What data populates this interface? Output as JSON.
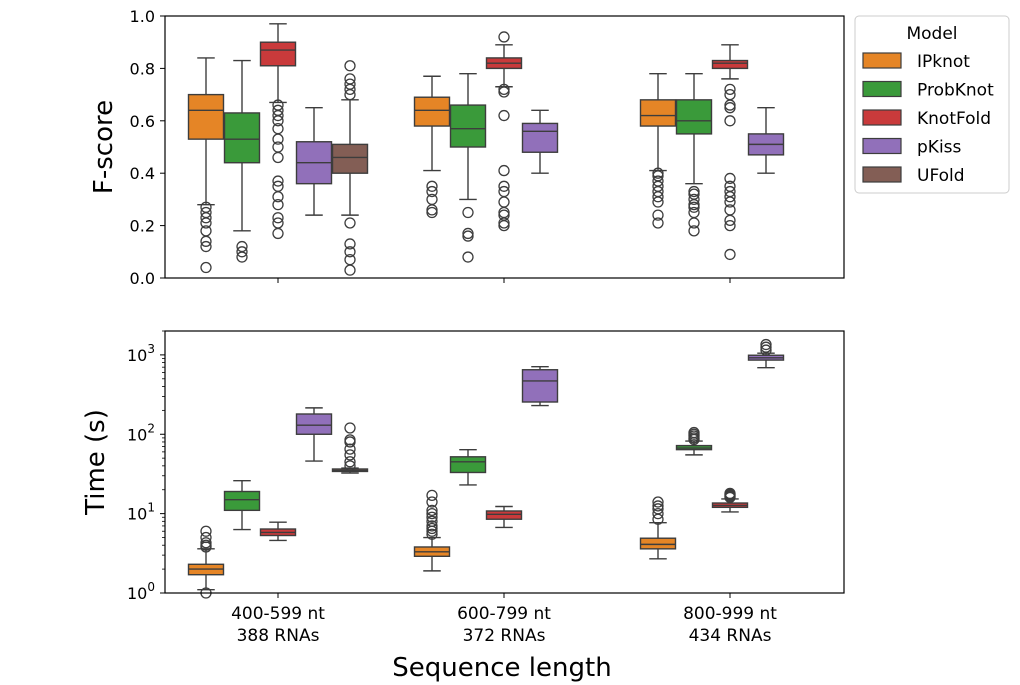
{
  "chart_data": {
    "type": "box",
    "xlabel": "Sequence length",
    "categories": [
      {
        "line1": "400-599 nt",
        "line2": "388 RNAs"
      },
      {
        "line1": "600-799 nt",
        "line2": "372 RNAs"
      },
      {
        "line1": "800-999 nt",
        "line2": "434 RNAs"
      }
    ],
    "legend": {
      "title": "Model",
      "placement": "outside-right",
      "entries": [
        {
          "name": "IPknot",
          "color": "#e58526"
        },
        {
          "name": "ProbKnot",
          "color": "#3a9a3a"
        },
        {
          "name": "KnotFold",
          "color": "#c93a3b"
        },
        {
          "name": "pKiss",
          "color": "#9170ba"
        },
        {
          "name": "UFold",
          "color": "#835e55"
        }
      ]
    },
    "panels": [
      {
        "id": "fscore",
        "ylabel": "F-score",
        "scale": "linear",
        "ylim": [
          0.0,
          1.0
        ],
        "yticks": [
          "0.0",
          "0.2",
          "0.4",
          "0.6",
          "0.8",
          "1.0"
        ],
        "groups": [
          [
            {
              "model": "IPknot",
              "q1": 0.53,
              "median": 0.64,
              "q3": 0.7,
              "whislo": 0.28,
              "whishi": 0.84,
              "fliers": [
                0.04,
                0.12,
                0.14,
                0.18,
                0.21,
                0.23,
                0.25,
                0.27
              ]
            },
            {
              "model": "ProbKnot",
              "q1": 0.44,
              "median": 0.53,
              "q3": 0.63,
              "whislo": 0.18,
              "whishi": 0.83,
              "fliers": [
                0.08,
                0.1,
                0.12
              ]
            },
            {
              "model": "KnotFold",
              "q1": 0.81,
              "median": 0.87,
              "q3": 0.9,
              "whislo": 0.67,
              "whishi": 0.97,
              "fliers": [
                0.17,
                0.21,
                0.23,
                0.28,
                0.31,
                0.35,
                0.37,
                0.46,
                0.5,
                0.53,
                0.57,
                0.6,
                0.62,
                0.64,
                0.66
              ]
            },
            {
              "model": "pKiss",
              "q1": 0.36,
              "median": 0.44,
              "q3": 0.52,
              "whislo": 0.24,
              "whishi": 0.65,
              "fliers": []
            },
            {
              "model": "UFold",
              "q1": 0.4,
              "median": 0.46,
              "q3": 0.51,
              "whislo": 0.24,
              "whishi": 0.68,
              "fliers": [
                0.03,
                0.07,
                0.1,
                0.13,
                0.21,
                0.7,
                0.72,
                0.74,
                0.76,
                0.81
              ]
            }
          ],
          [
            {
              "model": "IPknot",
              "q1": 0.58,
              "median": 0.64,
              "q3": 0.69,
              "whislo": 0.41,
              "whishi": 0.77,
              "fliers": [
                0.25,
                0.26,
                0.3,
                0.33,
                0.35
              ]
            },
            {
              "model": "ProbKnot",
              "q1": 0.5,
              "median": 0.57,
              "q3": 0.66,
              "whislo": 0.3,
              "whishi": 0.78,
              "fliers": [
                0.08,
                0.16,
                0.17,
                0.25
              ]
            },
            {
              "model": "KnotFold",
              "q1": 0.8,
              "median": 0.82,
              "q3": 0.84,
              "whislo": 0.73,
              "whishi": 0.89,
              "fliers": [
                0.2,
                0.21,
                0.24,
                0.25,
                0.29,
                0.33,
                0.35,
                0.41,
                0.62,
                0.71,
                0.72,
                0.92
              ]
            },
            {
              "model": "pKiss",
              "q1": 0.48,
              "median": 0.56,
              "q3": 0.59,
              "whislo": 0.4,
              "whishi": 0.64,
              "fliers": []
            }
          ],
          [
            {
              "model": "IPknot",
              "q1": 0.58,
              "median": 0.62,
              "q3": 0.68,
              "whislo": 0.41,
              "whishi": 0.78,
              "fliers": [
                0.21,
                0.24,
                0.29,
                0.31,
                0.33,
                0.35,
                0.37,
                0.39,
                0.4
              ]
            },
            {
              "model": "ProbKnot",
              "q1": 0.55,
              "median": 0.6,
              "q3": 0.68,
              "whislo": 0.36,
              "whishi": 0.78,
              "fliers": [
                0.18,
                0.21,
                0.25,
                0.27,
                0.28,
                0.3,
                0.32,
                0.33
              ]
            },
            {
              "model": "KnotFold",
              "q1": 0.8,
              "median": 0.82,
              "q3": 0.83,
              "whislo": 0.76,
              "whishi": 0.89,
              "fliers": [
                0.09,
                0.2,
                0.22,
                0.26,
                0.29,
                0.31,
                0.33,
                0.35,
                0.38,
                0.6,
                0.65,
                0.66,
                0.7,
                0.72
              ]
            },
            {
              "model": "pKiss",
              "q1": 0.47,
              "median": 0.51,
              "q3": 0.55,
              "whislo": 0.4,
              "whishi": 0.65,
              "fliers": []
            }
          ]
        ]
      },
      {
        "id": "time",
        "ylabel": "Time (s)",
        "scale": "log",
        "ylim": [
          1,
          2000
        ],
        "yticks": [
          {
            "value": 1,
            "base": "10",
            "exp": "0"
          },
          {
            "value": 10,
            "base": "10",
            "exp": "1"
          },
          {
            "value": 100,
            "base": "10",
            "exp": "2"
          },
          {
            "value": 1000,
            "base": "10",
            "exp": "3"
          }
        ],
        "groups": [
          [
            {
              "model": "IPknot",
              "q1": 1.7,
              "median": 2.0,
              "q3": 2.3,
              "whislo": 1.1,
              "whishi": 3.6,
              "fliers": [
                1.0,
                3.8,
                4.0,
                4.3,
                5.0,
                6.0
              ]
            },
            {
              "model": "ProbKnot",
              "q1": 11.0,
              "median": 15.0,
              "q3": 19.0,
              "whislo": 6.3,
              "whishi": 26.0,
              "fliers": []
            },
            {
              "model": "KnotFold",
              "q1": 5.3,
              "median": 5.8,
              "q3": 6.4,
              "whislo": 4.6,
              "whishi": 7.8,
              "fliers": []
            },
            {
              "model": "pKiss",
              "q1": 100,
              "median": 130,
              "q3": 180,
              "whislo": 46,
              "whishi": 215,
              "fliers": []
            },
            {
              "model": "UFold",
              "q1": 34,
              "median": 35,
              "q3": 36.5,
              "whislo": 32.5,
              "whishi": 37.5,
              "fliers": [
                40,
                45,
                55,
                65,
                80,
                85,
                120
              ]
            }
          ],
          [
            {
              "model": "IPknot",
              "q1": 2.9,
              "median": 3.3,
              "q3": 3.8,
              "whislo": 1.9,
              "whishi": 5.0,
              "fliers": [
                5.5,
                6.0,
                6.5,
                7.0,
                8.0,
                9.0,
                10.0,
                11.0,
                14.0,
                17.0
              ]
            },
            {
              "model": "ProbKnot",
              "q1": 33,
              "median": 45,
              "q3": 52,
              "whislo": 23,
              "whishi": 64,
              "fliers": []
            },
            {
              "model": "KnotFold",
              "q1": 8.5,
              "median": 9.8,
              "q3": 10.8,
              "whislo": 6.7,
              "whishi": 12.3,
              "fliers": []
            },
            {
              "model": "pKiss",
              "q1": 255,
              "median": 470,
              "q3": 650,
              "whislo": 230,
              "whishi": 710,
              "fliers": []
            }
          ],
          [
            {
              "model": "IPknot",
              "q1": 3.6,
              "median": 4.1,
              "q3": 4.9,
              "whislo": 2.7,
              "whishi": 7.7,
              "fliers": [
                8.5,
                10,
                11.5,
                12.5,
                14
              ]
            },
            {
              "model": "ProbKnot",
              "q1": 64,
              "median": 67,
              "q3": 72,
              "whislo": 55,
              "whishi": 82,
              "fliers": [
                86,
                90,
                95,
                100,
                105
              ]
            },
            {
              "model": "KnotFold",
              "q1": 12.0,
              "median": 12.7,
              "q3": 13.6,
              "whislo": 10.5,
              "whishi": 15.3,
              "fliers": [
                16,
                16.5,
                17,
                17.5,
                18
              ]
            },
            {
              "model": "pKiss",
              "q1": 860,
              "median": 920,
              "q3": 990,
              "whislo": 690,
              "whishi": 1050,
              "fliers": [
                1150,
                1250,
                1350
              ]
            }
          ]
        ]
      }
    ]
  }
}
